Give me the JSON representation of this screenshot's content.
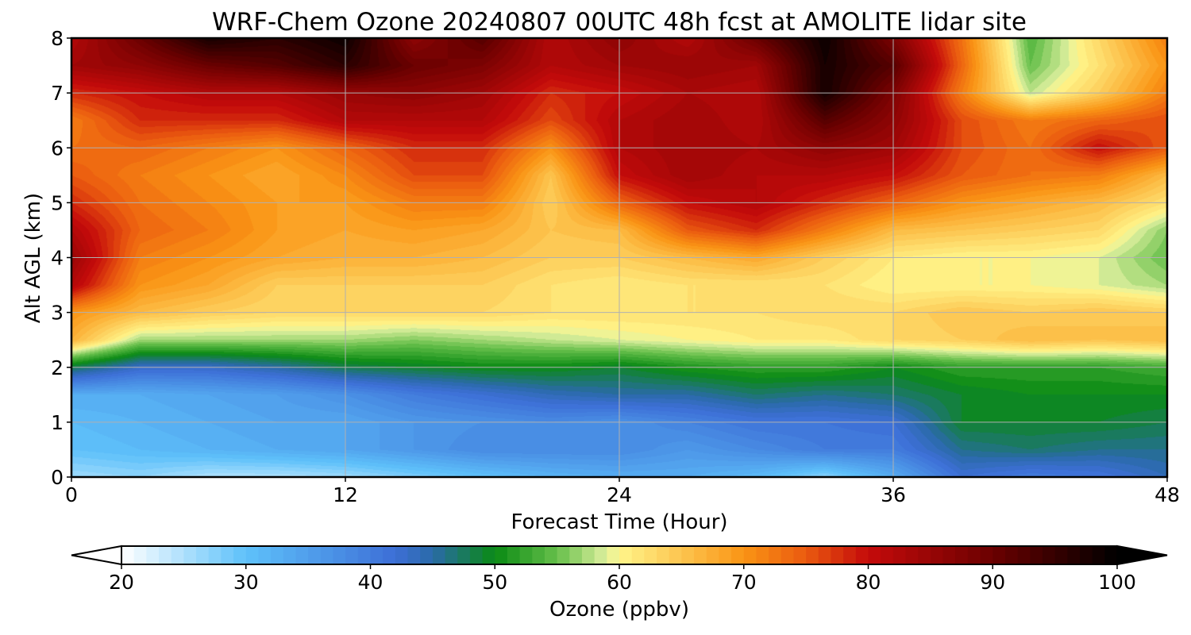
{
  "chart_data": {
    "type": "heatmap",
    "title": "WRF-Chem Ozone  20240807 00UTC 48h fcst at AMOLITE lidar site",
    "xlabel": "Forecast Time (Hour)",
    "ylabel": "Alt AGL (km)",
    "xlim": [
      0,
      48
    ],
    "ylim": [
      0,
      8
    ],
    "xticks": [
      0,
      12,
      24,
      36,
      48
    ],
    "yticks": [
      0,
      1,
      2,
      3,
      4,
      5,
      6,
      7,
      8
    ],
    "grid": true,
    "x_hours": [
      0,
      3,
      6,
      9,
      12,
      15,
      18,
      21,
      24,
      27,
      30,
      33,
      36,
      39,
      42,
      45,
      48
    ],
    "y_km": [
      0,
      0.5,
      1,
      1.5,
      2,
      2.5,
      3,
      3.5,
      4,
      4.5,
      5,
      5.5,
      6,
      6.5,
      7,
      7.5,
      8
    ],
    "z_ppbv": [
      [
        26,
        27,
        25,
        25,
        26,
        28,
        30,
        32,
        33,
        33,
        31,
        27,
        33,
        42,
        40,
        41,
        44
      ],
      [
        30,
        31,
        32,
        33,
        34,
        36,
        38,
        38,
        38,
        36,
        38,
        40,
        40,
        46,
        47,
        46,
        46
      ],
      [
        31,
        32,
        33,
        34,
        34,
        36,
        37,
        38,
        37,
        39,
        41,
        41,
        42,
        49,
        49,
        49,
        48
      ],
      [
        33,
        33,
        34,
        35,
        37,
        40,
        42,
        44,
        45,
        45,
        47,
        46,
        47,
        49,
        50,
        50,
        50
      ],
      [
        48,
        43,
        43,
        45,
        48,
        49,
        50,
        50,
        49,
        51,
        52,
        52,
        50,
        52,
        52,
        52,
        53
      ],
      [
        67,
        57,
        57,
        57,
        57,
        56,
        57,
        58,
        59,
        60,
        61,
        61,
        63,
        64,
        66,
        65,
        66
      ],
      [
        70,
        66,
        64,
        63,
        63,
        63,
        63,
        62,
        62,
        62,
        62,
        63,
        63,
        65,
        64,
        65,
        64
      ],
      [
        82,
        70,
        68,
        64,
        64,
        64,
        64,
        62,
        61,
        62,
        62,
        62,
        60,
        60,
        60,
        59,
        57
      ],
      [
        85,
        72,
        70,
        68,
        67,
        67,
        66,
        64,
        64,
        66,
        68,
        64,
        61,
        60,
        60,
        59,
        55
      ],
      [
        82,
        74,
        72,
        69,
        68,
        69,
        68,
        65,
        66,
        75,
        78,
        72,
        66,
        65,
        64,
        63,
        56
      ],
      [
        78,
        73,
        71,
        69,
        69,
        72,
        72,
        64,
        74,
        80,
        82,
        78,
        74,
        70,
        68,
        66,
        62
      ],
      [
        75,
        72,
        70,
        68,
        71,
        76,
        76,
        65,
        80,
        84,
        82,
        82,
        80,
        75,
        73,
        72,
        66
      ],
      [
        73,
        74,
        72,
        70,
        74,
        78,
        78,
        70,
        82,
        84,
        83,
        86,
        84,
        76,
        73,
        80,
        75
      ],
      [
        72,
        78,
        78,
        78,
        82,
        82,
        82,
        76,
        82,
        84,
        82,
        92,
        86,
        76,
        72,
        74,
        76
      ],
      [
        78,
        80,
        82,
        82,
        85,
        86,
        84,
        78,
        80,
        83,
        82,
        98,
        88,
        72,
        58,
        64,
        72
      ],
      [
        84,
        86,
        90,
        92,
        96,
        90,
        88,
        82,
        84,
        85,
        84,
        98,
        92,
        74,
        55,
        62,
        70
      ],
      [
        82,
        90,
        98,
        96,
        99,
        86,
        92,
        82,
        86,
        82,
        90,
        99,
        88,
        73,
        54,
        63,
        72
      ]
    ],
    "colorbar": {
      "label": "Ozone  (ppbv)",
      "min": 20,
      "max": 100,
      "step": 1,
      "extend": "both",
      "ticks": [
        20,
        30,
        40,
        50,
        60,
        70,
        80,
        90,
        100
      ],
      "color_stops": [
        {
          "value": 20,
          "color": "#ffffff"
        },
        {
          "value": 30,
          "color": "#5ec1fa"
        },
        {
          "value": 42,
          "color": "#3d6fd6"
        },
        {
          "value": 45,
          "color": "#2a6aa8"
        },
        {
          "value": 50,
          "color": "#0a8a14"
        },
        {
          "value": 55,
          "color": "#66bf4a"
        },
        {
          "value": 59,
          "color": "#dff0a0"
        },
        {
          "value": 60,
          "color": "#fff58a"
        },
        {
          "value": 70,
          "color": "#fa9414"
        },
        {
          "value": 75,
          "color": "#ea5a10"
        },
        {
          "value": 80,
          "color": "#c40a0a"
        },
        {
          "value": 90,
          "color": "#6a0000"
        },
        {
          "value": 100,
          "color": "#000000"
        }
      ]
    }
  }
}
